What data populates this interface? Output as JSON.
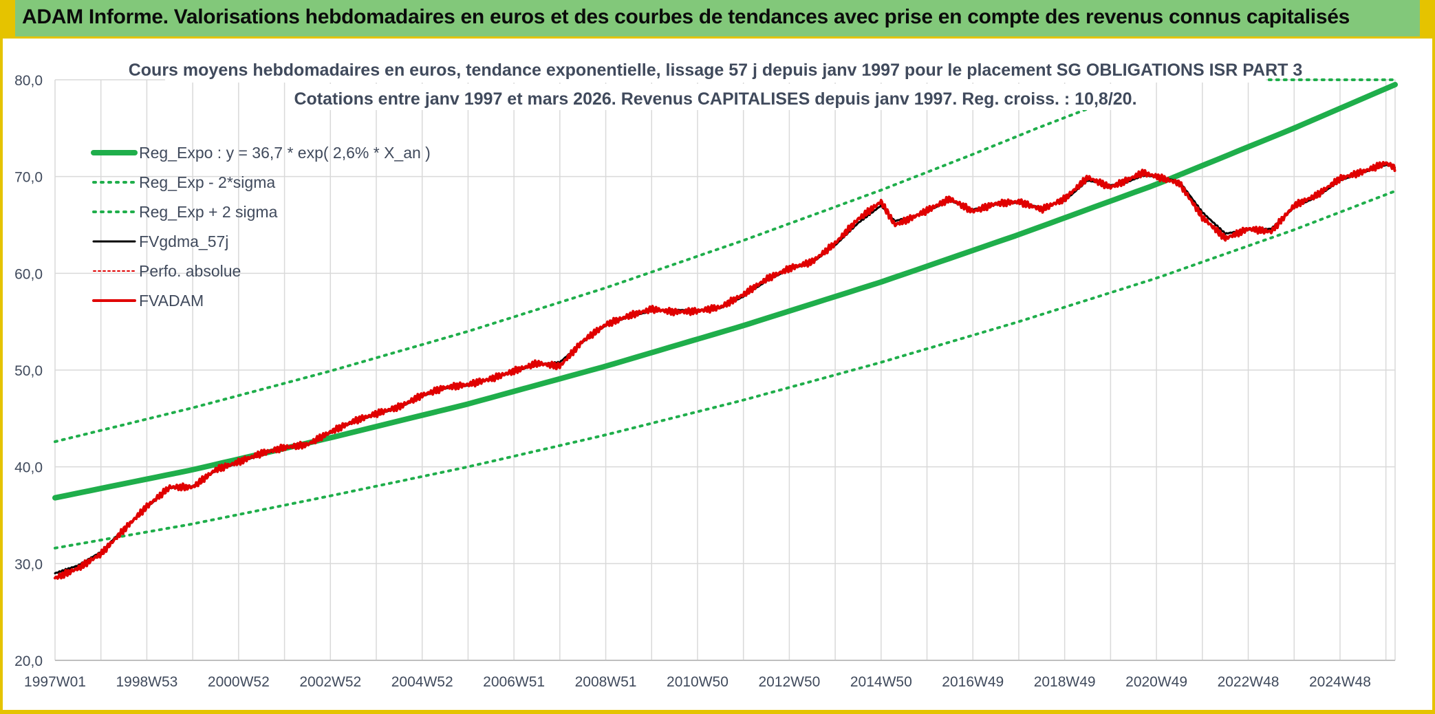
{
  "header": {
    "title": "ADAM Informe. Valorisations hebdomadaires en euros et des courbes de tendances avec prise en compte des revenus connus capitalisés"
  },
  "chart_data": {
    "type": "line",
    "title": "Cours moyens hebdomadaires en euros, tendance exponentielle, lissage 57 j depuis janv 1997 pour le placement SG OBLIGATIONS ISR PART 3",
    "subtitle": "Cotations entre janv 1997 et mars 2026. Revenus CAPITALISES depuis janv 1997. Reg. croiss. : 10,8/20.",
    "xlabel": "",
    "ylabel": "",
    "xlim": [
      1997.0,
      2026.2
    ],
    "ylim": [
      20,
      80
    ],
    "y_ticks": [
      "20,0",
      "30,0",
      "40,0",
      "50,0",
      "60,0",
      "70,0",
      "80,0"
    ],
    "x_ticks": [
      {
        "label": "1997W01",
        "year": 1997.0
      },
      {
        "label": "1998W53",
        "year": 1999.0
      },
      {
        "label": "2000W52",
        "year": 2001.0
      },
      {
        "label": "2002W52",
        "year": 2003.0
      },
      {
        "label": "2004W52",
        "year": 2005.0
      },
      {
        "label": "2006W51",
        "year": 2007.0
      },
      {
        "label": "2008W51",
        "year": 2009.0
      },
      {
        "label": "2010W50",
        "year": 2011.0
      },
      {
        "label": "2012W50",
        "year": 2013.0
      },
      {
        "label": "2014W50",
        "year": 2015.0
      },
      {
        "label": "2016W49",
        "year": 2017.0
      },
      {
        "label": "2018W49",
        "year": 2019.0
      },
      {
        "label": "2020W49",
        "year": 2021.0
      },
      {
        "label": "2022W48",
        "year": 2023.0
      },
      {
        "label": "2024W48",
        "year": 2025.0
      }
    ],
    "grid": true,
    "legend_position": "top-left",
    "colors": {
      "reg_expo": "#1fae4b",
      "sigma": "#1fae4b",
      "fvgdma": "#000000",
      "perfo": "#e00000",
      "fvadam": "#e00000",
      "grid": "#d9d9d9",
      "text": "#404a5c"
    },
    "series": [
      {
        "name": "Reg_Expo : y = 36,7 * exp( 2,6% *  X_an )",
        "kind": "reg_expo",
        "x": [
          1997.0,
          2000.0,
          2003.0,
          2006.0,
          2009.0,
          2012.0,
          2015.0,
          2018.0,
          2021.0,
          2024.0,
          2026.2
        ],
        "y": [
          36.8,
          39.7,
          43.0,
          46.5,
          50.4,
          54.6,
          59.1,
          64.0,
          69.2,
          75.0,
          79.5
        ]
      },
      {
        "name": "Reg_Exp - 2*sigma",
        "kind": "sigma_low",
        "x": [
          1997.0,
          2000.0,
          2003.0,
          2006.0,
          2009.0,
          2012.0,
          2015.0,
          2018.0,
          2021.0,
          2024.0,
          2026.2
        ],
        "y": [
          31.6,
          34.1,
          37.0,
          40.0,
          43.3,
          46.9,
          50.8,
          55.0,
          59.5,
          64.5,
          68.5
        ]
      },
      {
        "name": "Reg_Exp + 2 sigma",
        "kind": "sigma_high",
        "x": [
          1997.0,
          2000.0,
          2003.0,
          2006.0,
          2009.0,
          2012.0,
          2015.0,
          2017.0,
          2018.4,
          2019.5
        ],
        "y": [
          42.6,
          46.1,
          49.9,
          54.0,
          58.5,
          63.4,
          68.6,
          72.3,
          75.0,
          77.0
        ]
      },
      {
        "name": "Reg_Exp + 2 sigma (cap)",
        "kind": "sigma_cap",
        "x": [
          2022.3,
          2026.2
        ],
        "y": [
          80.0,
          80.0
        ]
      },
      {
        "name": "FVgdma_57j",
        "kind": "fvgdma",
        "x": [
          1997.0,
          1997.5,
          1998.0,
          1998.5,
          1999.0,
          1999.5,
          2000.0,
          2000.5,
          2001.0,
          2001.5,
          2002.0,
          2002.5,
          2003.0,
          2003.5,
          2004.0,
          2004.5,
          2005.0,
          2005.5,
          2006.0,
          2006.5,
          2007.0,
          2007.5,
          2008.0,
          2008.5,
          2009.0,
          2009.5,
          2010.0,
          2010.5,
          2011.0,
          2011.5,
          2012.0,
          2012.5,
          2013.0,
          2013.5,
          2014.0,
          2014.5,
          2015.0,
          2015.3,
          2015.7,
          2016.0,
          2016.5,
          2017.0,
          2017.5,
          2018.0,
          2018.5,
          2019.0,
          2019.5,
          2020.0,
          2020.3,
          2020.7,
          2021.0,
          2021.5,
          2022.0,
          2022.5,
          2023.0,
          2023.5,
          2024.0,
          2024.5,
          2025.0,
          2025.5,
          2026.0,
          2026.2
        ],
        "y": [
          29.0,
          29.8,
          31.2,
          33.6,
          35.8,
          37.8,
          38.0,
          39.6,
          40.4,
          41.3,
          41.9,
          42.3,
          43.5,
          44.6,
          45.4,
          46.1,
          47.3,
          48.1,
          48.4,
          49.1,
          49.8,
          50.6,
          50.8,
          52.9,
          54.6,
          55.5,
          56.1,
          56.2,
          56.2,
          56.4,
          57.6,
          59.2,
          60.4,
          61.1,
          62.9,
          65.2,
          67.0,
          65.4,
          65.9,
          66.4,
          67.5,
          66.6,
          67.1,
          67.3,
          66.8,
          67.5,
          69.6,
          69.1,
          69.3,
          70.1,
          70.0,
          69.5,
          66.3,
          64.1,
          64.5,
          64.6,
          66.8,
          67.9,
          69.6,
          70.4,
          71.2,
          71.0
        ]
      },
      {
        "name": "Perfo. absolue",
        "kind": "perfo",
        "x": [
          1997.0,
          1997.5,
          1998.0,
          1998.5,
          1999.0,
          1999.5,
          2000.0,
          2000.5,
          2001.0,
          2001.5,
          2002.0,
          2002.5,
          2003.0,
          2003.5,
          2004.0,
          2004.5,
          2005.0,
          2005.5,
          2006.0,
          2006.5,
          2007.0,
          2007.5,
          2008.0,
          2008.5,
          2009.0,
          2009.5,
          2010.0,
          2010.5,
          2011.0,
          2011.5,
          2012.0,
          2012.5,
          2013.0,
          2013.5,
          2014.0,
          2014.5,
          2015.0,
          2015.3,
          2015.7,
          2016.0,
          2016.5,
          2017.0,
          2017.5,
          2018.0,
          2018.5,
          2019.0,
          2019.5,
          2020.0,
          2020.3,
          2020.7,
          2021.0,
          2021.5,
          2022.0,
          2022.5,
          2023.0,
          2023.5,
          2024.0,
          2024.5,
          2025.0,
          2025.5,
          2026.0,
          2026.2
        ],
        "y": [
          28.5,
          29.5,
          31.0,
          33.5,
          35.9,
          37.9,
          37.9,
          39.7,
          40.5,
          41.4,
          42.0,
          42.3,
          43.6,
          44.7,
          45.5,
          46.2,
          47.4,
          48.2,
          48.5,
          49.1,
          49.9,
          50.7,
          50.4,
          53.0,
          54.7,
          55.6,
          56.3,
          56.0,
          56.1,
          56.5,
          57.8,
          59.4,
          60.5,
          61.2,
          63.1,
          65.6,
          67.4,
          65.0,
          65.8,
          66.5,
          67.7,
          66.4,
          67.2,
          67.4,
          66.6,
          67.7,
          69.9,
          68.9,
          69.5,
          70.4,
          70.0,
          69.3,
          65.8,
          63.6,
          64.6,
          64.3,
          67.0,
          68.1,
          69.8,
          70.5,
          71.4,
          70.9
        ]
      },
      {
        "name": "FVADAM",
        "kind": "fvadam",
        "x": [
          1997.0,
          1997.5,
          1998.0,
          1998.5,
          1999.0,
          1999.5,
          2000.0,
          2000.5,
          2001.0,
          2001.5,
          2002.0,
          2002.5,
          2003.0,
          2003.5,
          2004.0,
          2004.5,
          2005.0,
          2005.5,
          2006.0,
          2006.5,
          2007.0,
          2007.5,
          2008.0,
          2008.5,
          2009.0,
          2009.5,
          2010.0,
          2010.5,
          2011.0,
          2011.5,
          2012.0,
          2012.5,
          2013.0,
          2013.5,
          2014.0,
          2014.5,
          2015.0,
          2015.3,
          2015.7,
          2016.0,
          2016.5,
          2017.0,
          2017.5,
          2018.0,
          2018.5,
          2019.0,
          2019.5,
          2020.0,
          2020.3,
          2020.7,
          2021.0,
          2021.5,
          2022.0,
          2022.5,
          2023.0,
          2023.5,
          2024.0,
          2024.5,
          2025.0,
          2025.5,
          2026.0,
          2026.2
        ],
        "y": [
          28.5,
          29.5,
          31.0,
          33.5,
          35.9,
          37.9,
          37.9,
          39.7,
          40.5,
          41.4,
          42.0,
          42.3,
          43.6,
          44.7,
          45.5,
          46.2,
          47.4,
          48.2,
          48.5,
          49.1,
          49.9,
          50.7,
          50.4,
          53.0,
          54.7,
          55.6,
          56.3,
          56.0,
          56.1,
          56.5,
          57.8,
          59.4,
          60.5,
          61.2,
          63.1,
          65.6,
          67.4,
          65.0,
          65.8,
          66.5,
          67.7,
          66.4,
          67.2,
          67.4,
          66.6,
          67.7,
          69.9,
          68.9,
          69.5,
          70.4,
          70.0,
          69.3,
          65.8,
          63.6,
          64.6,
          64.3,
          67.0,
          68.1,
          69.8,
          70.5,
          71.4,
          70.9
        ]
      }
    ]
  }
}
